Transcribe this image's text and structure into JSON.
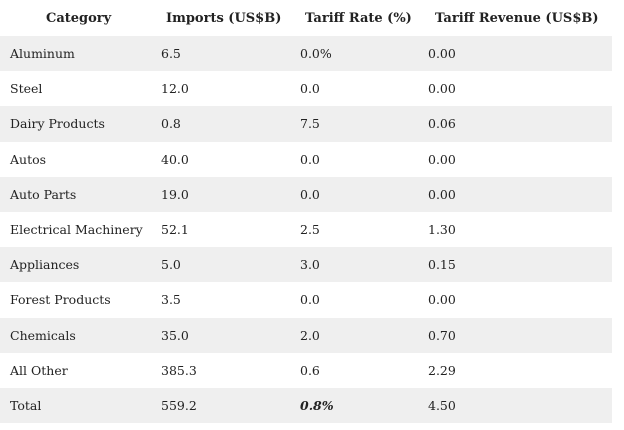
{
  "table": {
    "headers": [
      "Category",
      "Imports (US$B)",
      "Tariff Rate (%)",
      "Tariff Revenue (US$B)"
    ],
    "rows": [
      [
        "Aluminum",
        "6.5",
        "0.0%",
        "0.00"
      ],
      [
        "Steel",
        "12.0",
        "0.0",
        "0.00"
      ],
      [
        "Dairy Products",
        "0.8",
        "7.5",
        "0.06"
      ],
      [
        "Autos",
        "40.0",
        "0.0",
        "0.00"
      ],
      [
        "Auto Parts",
        "19.0",
        "0.0",
        "0.00"
      ],
      [
        "Electrical Machinery",
        "52.1",
        "2.5",
        "1.30"
      ],
      [
        "Appliances",
        "5.0",
        "3.0",
        "0.15"
      ],
      [
        "Forest Products",
        "3.5",
        "0.0",
        "0.00"
      ],
      [
        "Chemicals",
        "35.0",
        "2.0",
        "0.70"
      ],
      [
        "All Other",
        "385.3",
        "0.6",
        "2.29"
      ],
      [
        "Total",
        "559.2",
        "0.8%",
        "4.50"
      ]
    ]
  },
  "colors": {
    "row_shade": "#efefef",
    "text": "#222222",
    "background": "#ffffff"
  }
}
